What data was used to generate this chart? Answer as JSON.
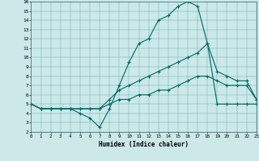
{
  "xlabel": "Humidex (Indice chaleur)",
  "xlim": [
    0,
    23
  ],
  "ylim": [
    2,
    16
  ],
  "xticks": [
    0,
    1,
    2,
    3,
    4,
    5,
    6,
    7,
    8,
    9,
    10,
    11,
    12,
    13,
    14,
    15,
    16,
    17,
    18,
    19,
    20,
    21,
    22,
    23
  ],
  "yticks": [
    2,
    3,
    4,
    5,
    6,
    7,
    8,
    9,
    10,
    11,
    12,
    13,
    14,
    15,
    16
  ],
  "bg_color": "#cce8e8",
  "line_color": "#006666",
  "line1_x": [
    0,
    1,
    2,
    3,
    4,
    5,
    6,
    7,
    8,
    9,
    10,
    11,
    12,
    13,
    14,
    15,
    16,
    17,
    18,
    19,
    20,
    21,
    22,
    23
  ],
  "line1_y": [
    5.0,
    4.5,
    4.5,
    4.5,
    4.5,
    4.0,
    3.5,
    2.5,
    4.5,
    7.0,
    9.5,
    11.5,
    12.0,
    14.0,
    14.5,
    15.5,
    16.0,
    15.5,
    11.5,
    5.0,
    5.0,
    5.0,
    5.0,
    5.0
  ],
  "line2_x": [
    0,
    1,
    2,
    3,
    4,
    5,
    6,
    7,
    8,
    9,
    10,
    11,
    12,
    13,
    14,
    15,
    16,
    17,
    18,
    19,
    20,
    21,
    22,
    23
  ],
  "line2_y": [
    5.0,
    4.5,
    4.5,
    4.5,
    4.5,
    4.5,
    4.5,
    4.5,
    5.5,
    6.5,
    7.0,
    7.5,
    8.0,
    8.5,
    9.0,
    9.5,
    10.0,
    10.5,
    11.5,
    8.5,
    8.0,
    7.5,
    7.5,
    5.5
  ],
  "line3_x": [
    0,
    1,
    2,
    3,
    4,
    5,
    6,
    7,
    8,
    9,
    10,
    11,
    12,
    13,
    14,
    15,
    16,
    17,
    18,
    19,
    20,
    21,
    22,
    23
  ],
  "line3_y": [
    5.0,
    4.5,
    4.5,
    4.5,
    4.5,
    4.5,
    4.5,
    4.5,
    5.0,
    5.5,
    5.5,
    6.0,
    6.0,
    6.5,
    6.5,
    7.0,
    7.5,
    8.0,
    8.0,
    7.5,
    7.0,
    7.0,
    7.0,
    5.5
  ]
}
